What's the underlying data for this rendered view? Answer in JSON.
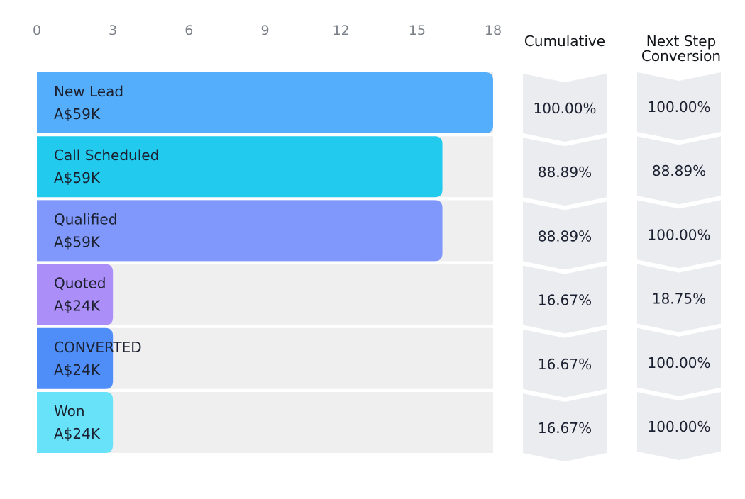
{
  "chart_data": {
    "type": "bar",
    "orientation": "horizontal",
    "x_ticks": [
      "0",
      "3",
      "6",
      "9",
      "12",
      "15",
      "18"
    ],
    "xlim": [
      0,
      18
    ],
    "grid": false,
    "stages": [
      {
        "name": "New Lead",
        "amount": "A$59K",
        "count": 18,
        "color": "#55aefb",
        "cumulative": "100.00%",
        "next_step": "100.00%"
      },
      {
        "name": "Call Scheduled",
        "amount": "A$59K",
        "count": 16,
        "color": "#22cbee",
        "cumulative": "88.89%",
        "next_step": "88.89%"
      },
      {
        "name": "Qualified",
        "amount": "A$59K",
        "count": 16,
        "color": "#8098fb",
        "cumulative": "88.89%",
        "next_step": "100.00%"
      },
      {
        "name": "Quoted",
        "amount": "A$24K",
        "count": 3,
        "color": "#ac8ef9",
        "cumulative": "16.67%",
        "next_step": "18.75%"
      },
      {
        "name": "CONVERTED",
        "amount": "A$24K",
        "count": 3,
        "color": "#4f8df9",
        "cumulative": "16.67%",
        "next_step": "100.00%"
      },
      {
        "name": "Won",
        "amount": "A$24K",
        "count": 3,
        "color": "#67e2f9",
        "cumulative": "16.67%",
        "next_step": "100.00%"
      }
    ],
    "columns": {
      "cumulative": "Cumulative",
      "next_step": [
        "Next Step",
        "Conversion"
      ]
    },
    "track_color": "#efefef",
    "chevron_color": "#ebecf0"
  }
}
